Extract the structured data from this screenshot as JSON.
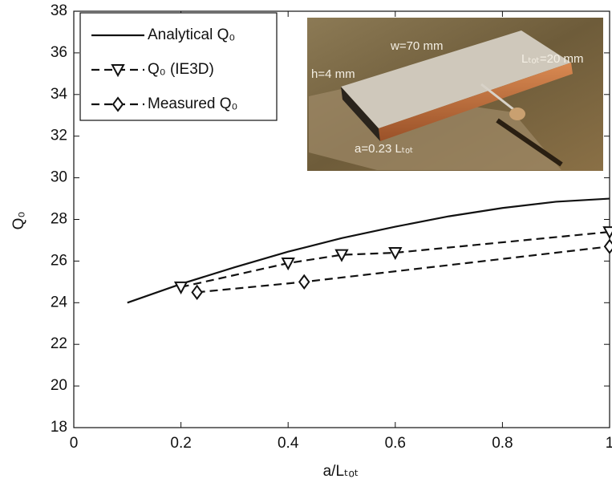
{
  "chart_data": {
    "type": "line",
    "xlabel": "a/Lₜₒₜ",
    "ylabel": "Q₀",
    "xlim": [
      0,
      1
    ],
    "ylim": [
      18,
      38
    ],
    "xticks": [
      0,
      0.2,
      0.4,
      0.6,
      0.8,
      1
    ],
    "yticks": [
      18,
      20,
      22,
      24,
      26,
      28,
      30,
      32,
      34,
      36,
      38
    ],
    "grid": false,
    "legend": "upper left",
    "series": [
      {
        "name": "Analytical Q₀",
        "color": "#111111",
        "dash": "solid",
        "marker": "none",
        "x": [
          0.1,
          0.2,
          0.3,
          0.4,
          0.5,
          0.6,
          0.7,
          0.8,
          0.9,
          1.0
        ],
        "values": [
          24.0,
          24.9,
          25.7,
          26.45,
          27.1,
          27.65,
          28.15,
          28.55,
          28.85,
          29.0
        ]
      },
      {
        "name": "Q₀ (IE3D)",
        "color": "#111111",
        "dash": "dashed",
        "marker": "triangle-down",
        "x": [
          0.2,
          0.4,
          0.5,
          0.6,
          1.0
        ],
        "values": [
          24.75,
          25.9,
          26.3,
          26.4,
          27.4
        ]
      },
      {
        "name": "Measured Q₀",
        "color": "#111111",
        "dash": "dashed",
        "marker": "diamond",
        "x": [
          0.23,
          0.43,
          1.0
        ],
        "values": [
          24.5,
          25.0,
          26.7
        ]
      }
    ],
    "inset": {
      "annotations": [
        "w=70 mm",
        "h=4 mm",
        "Lₜₒₜ=20 mm",
        "a=0.23 Lₜₒₜ"
      ]
    }
  }
}
